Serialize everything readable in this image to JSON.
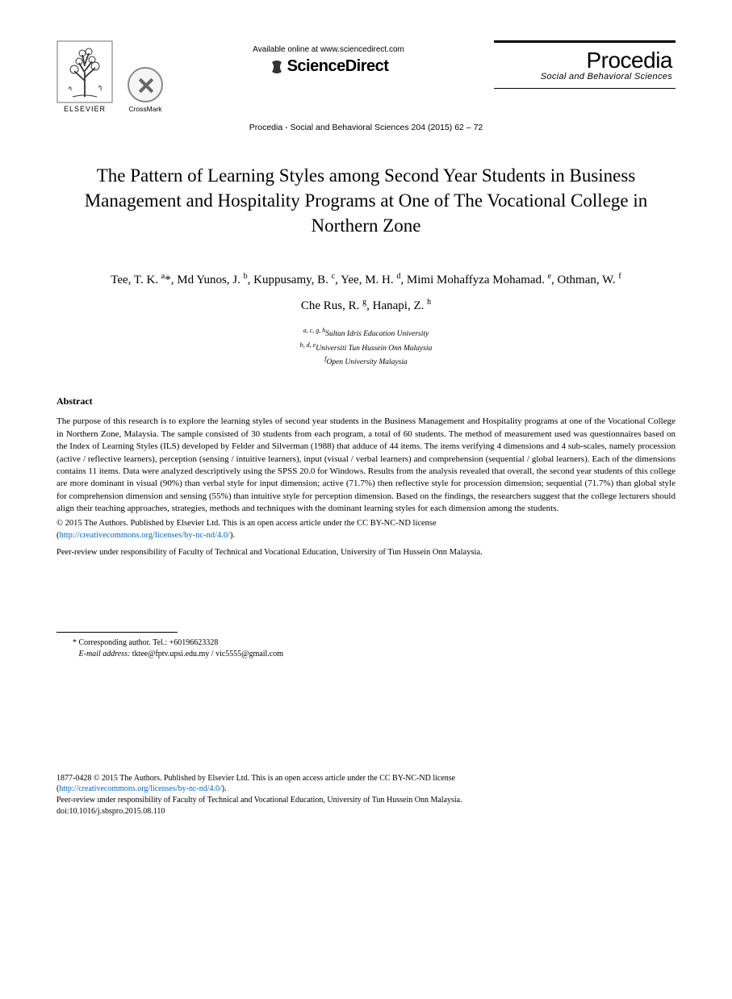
{
  "header": {
    "elsevier_label": "ELSEVIER",
    "crossmark_label": "CrossMark",
    "available_text": "Available online at www.sciencedirect.com",
    "sciencedirect_text": "ScienceDirect",
    "procedia_title": "Procedia",
    "procedia_subtitle": "Social and Behavioral Sciences",
    "journal_reference": "Procedia - Social and Behavioral Sciences 204 (2015) 62 – 72"
  },
  "article": {
    "title": "The Pattern of Learning Styles among Second Year Students in Business Management and Hospitality Programs at One of The Vocational College in Northern Zone",
    "authors_line_1_html": "Tee, T. K. <sup>a</sup>*, Md Yunos, J. <sup>b</sup>, Kuppusamy, B. <sup>c</sup>, Yee, M. H. <sup>d</sup>, Mimi Mohaffyza Mohamad. <sup>e</sup>, Othman, W. <sup>f</sup>",
    "authors_line_2_html": "Che Rus, R. <sup>g</sup>, Hanapi, Z. <sup>h</sup>",
    "affiliations_html": "<sup>a, c, g, h</sup>Sultan Idris Education University<br><sup>b, d, e</sup>Universiti Tun Hussein Onn Malaysia<br><sup>f</sup>Open University Malaysia"
  },
  "abstract": {
    "heading": "Abstract",
    "text": "The purpose of this research is to explore the learning styles of second year students in the Business Management and Hospitality programs at one of the Vocational College in Northern Zone, Malaysia. The sample consisted of 30 students from each program, a total of 60 students. The method of measurement used was questionnaires based on the Index of Learning Styles (ILS) developed by Felder and Silverman (1988) that adduce of 44 items.  The items verifying 4 dimensions and 4 sub-scales, namely procession (active / reflective learners), perception (sensing / intuitive learners), input (visual / verbal learners) and comprehension (sequential / global learners).  Each of the dimensions contains 11 items.  Data were analyzed descriptively using the SPSS 20.0 for Windows. Results from the analysis revealed that overall, the second year students of this college are more dominant in visual (90%) than verbal style for input dimension; active (71.7%) then reflective style for procession dimension; sequential (71.7%) than global style for comprehension dimension and sensing (55%) than intuitive style for perception dimension. Based on the findings, the researchers suggest that the college lecturers should align their teaching approaches, strategies, methods and techniques with the dominant learning styles for each dimension among the students."
  },
  "copyright": {
    "line1": "© 2015 The Authors. Published by Elsevier Ltd. This is an open access article under the CC BY-NC-ND license",
    "license_url_text": "http://creativecommons.org/licenses/by-nc-nd/4.0/",
    "peer_review": "Peer-review under responsibility of Faculty of Technical and Vocational Education, University of Tun Hussein Onn Malaysia."
  },
  "corresponding": {
    "line": "* Corresponding author. Tel.: +60196623328",
    "email_label": "E-mail address:",
    "email": " tktee@fptv.upsi.edu.my / vic5555@gmail.com"
  },
  "footer": {
    "issn_line": "1877-0428 © 2015 The Authors. Published by Elsevier Ltd. This is an open access article under the CC BY-NC-ND license",
    "license_url_text": "http://creativecommons.org/licenses/by-nc-nd/4.0/",
    "peer_review": "Peer-review under responsibility of Faculty of Technical and Vocational Education, University of Tun Hussein Onn Malaysia.",
    "doi": "doi:10.1016/j.sbspro.2015.08.110"
  },
  "colors": {
    "link": "#0066cc",
    "text": "#000000",
    "background": "#ffffff"
  }
}
